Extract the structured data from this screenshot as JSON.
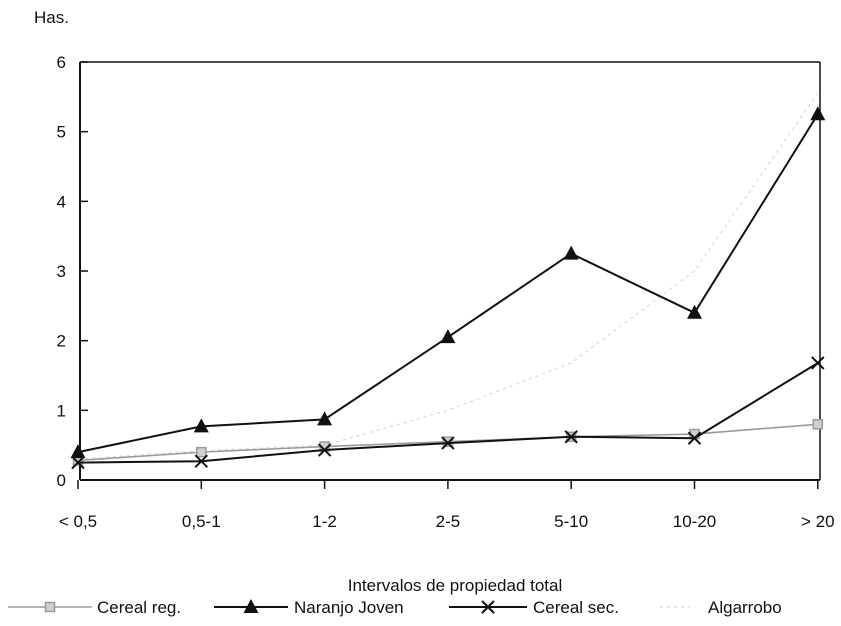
{
  "chart_data": {
    "type": "line",
    "ylabel": "Has.",
    "xlabel": "Intervalos de propiedad total",
    "categories": [
      "< 0,5",
      "0,5-1",
      "1-2",
      "2-5",
      "5-10",
      "10-20",
      "> 20"
    ],
    "ylim": [
      0,
      6
    ],
    "yticks": [
      "0",
      "1",
      "2",
      "3",
      "4",
      "5",
      "6"
    ],
    "grid": false,
    "legend_position": "bottom",
    "series": [
      {
        "name": "Cereal reg.",
        "marker": "square",
        "color": "#9a9a9a",
        "values": [
          0.28,
          0.4,
          0.48,
          0.55,
          0.62,
          0.66,
          0.8
        ]
      },
      {
        "name": "Naranjo Joven",
        "marker": "triangle",
        "color": "#111111",
        "values": [
          0.4,
          0.77,
          0.87,
          2.05,
          3.25,
          2.4,
          5.25
        ]
      },
      {
        "name": "Cereal sec.",
        "marker": "x",
        "color": "#111111",
        "values": [
          0.25,
          0.27,
          0.43,
          0.53,
          0.62,
          0.6,
          1.68
        ]
      },
      {
        "name": "Algarrobo",
        "marker": "none",
        "color": "#d8d8d8",
        "values": [
          0.3,
          0.42,
          0.5,
          1.0,
          1.68,
          3.0,
          5.55
        ]
      }
    ]
  }
}
